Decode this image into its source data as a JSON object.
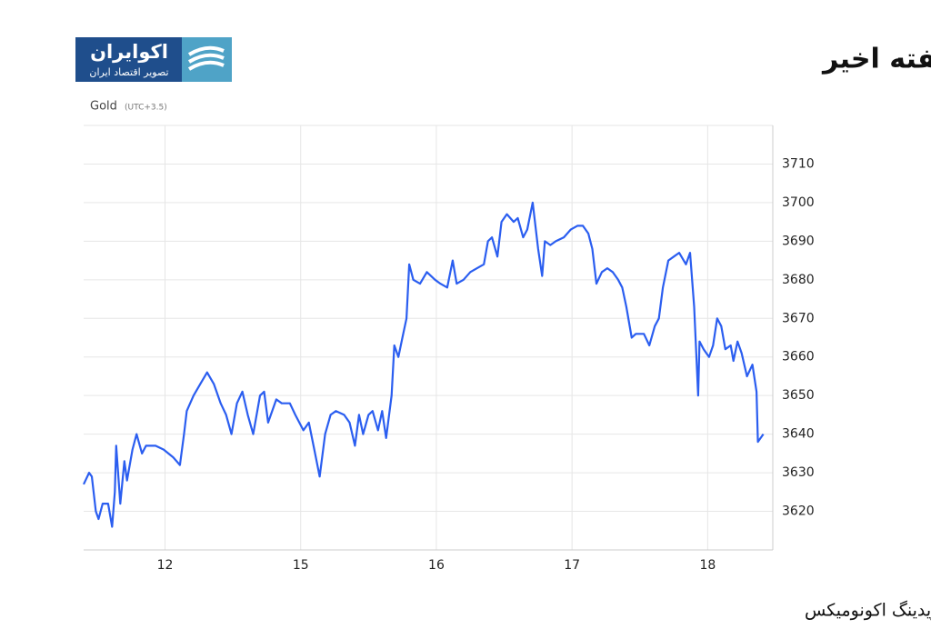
{
  "logo": {
    "name": "اکوایران",
    "tagline": "تصویر اقتصاد ایران"
  },
  "chart_data": {
    "type": "line",
    "title": "روند طلای جهانی در یک هفته اخیر",
    "y_label": "Gold",
    "y_label_note": "(UTC+3.5)",
    "source": "منبع: تریدینگ اکونومیکس",
    "color": "#2b5ef0",
    "grid": true,
    "xlim": [
      -0.6,
      4.48
    ],
    "ylim": [
      3610,
      3720
    ],
    "xticks": [
      {
        "value": 0,
        "label": "12"
      },
      {
        "value": 1,
        "label": "15"
      },
      {
        "value": 2,
        "label": "16"
      },
      {
        "value": 3,
        "label": "17"
      },
      {
        "value": 4,
        "label": "18"
      }
    ],
    "yticks": [
      3620,
      3630,
      3640,
      3650,
      3660,
      3670,
      3680,
      3690,
      3700,
      3710
    ],
    "x": [
      -0.6,
      -0.56,
      -0.54,
      -0.51,
      -0.49,
      -0.46,
      -0.42,
      -0.39,
      -0.37,
      -0.36,
      -0.33,
      -0.3,
      -0.28,
      -0.24,
      -0.21,
      -0.17,
      -0.14,
      -0.07,
      -0.01,
      0.06,
      0.11,
      0.14,
      0.16,
      0.21,
      0.26,
      0.31,
      0.36,
      0.41,
      0.45,
      0.49,
      0.53,
      0.57,
      0.61,
      0.65,
      0.7,
      0.73,
      0.76,
      0.82,
      0.86,
      0.92,
      0.96,
      1.02,
      1.06,
      1.1,
      1.14,
      1.18,
      1.22,
      1.26,
      1.32,
      1.36,
      1.4,
      1.43,
      1.46,
      1.5,
      1.53,
      1.57,
      1.6,
      1.63,
      1.67,
      1.69,
      1.72,
      1.75,
      1.78,
      1.8,
      1.83,
      1.88,
      1.93,
      1.99,
      2.03,
      2.08,
      2.12,
      2.15,
      2.2,
      2.25,
      2.3,
      2.35,
      2.38,
      2.41,
      2.45,
      2.48,
      2.52,
      2.57,
      2.6,
      2.64,
      2.67,
      2.71,
      2.75,
      2.78,
      2.8,
      2.84,
      2.88,
      2.94,
      2.99,
      3.04,
      3.08,
      3.12,
      3.15,
      3.18,
      3.22,
      3.26,
      3.3,
      3.34,
      3.37,
      3.4,
      3.44,
      3.47,
      3.53,
      3.57,
      3.61,
      3.64,
      3.67,
      3.71,
      3.75,
      3.79,
      3.84,
      3.87,
      3.9,
      3.93,
      3.94,
      3.97,
      4.01,
      4.04,
      4.07,
      4.1,
      4.13,
      4.17,
      4.19,
      4.22,
      4.25,
      4.29,
      4.33,
      4.36,
      4.37,
      4.41
    ],
    "values": [
      3627,
      3630,
      3629,
      3620,
      3618,
      3622,
      3622,
      3616,
      3625,
      3637,
      3622,
      3633,
      3628,
      3636,
      3640,
      3635,
      3637,
      3637,
      3636,
      3634,
      3632,
      3640,
      3646,
      3650,
      3653,
      3656,
      3653,
      3648,
      3645,
      3640,
      3648,
      3651,
      3645,
      3640,
      3650,
      3651,
      3643,
      3649,
      3648,
      3648,
      3645,
      3641,
      3643,
      3636,
      3629,
      3640,
      3645,
      3646,
      3645,
      3643,
      3637,
      3645,
      3640,
      3645,
      3646,
      3641,
      3646,
      3639,
      3650,
      3663,
      3660,
      3665,
      3670,
      3684,
      3680,
      3679,
      3682,
      3680,
      3679,
      3678,
      3685,
      3679,
      3680,
      3682,
      3683,
      3684,
      3690,
      3691,
      3686,
      3695,
      3697,
      3695,
      3696,
      3691,
      3693,
      3700,
      3688,
      3681,
      3690,
      3689,
      3690,
      3691,
      3693,
      3694,
      3694,
      3692,
      3688,
      3679,
      3682,
      3683,
      3682,
      3680,
      3678,
      3673,
      3665,
      3666,
      3666,
      3663,
      3668,
      3670,
      3678,
      3685,
      3686,
      3687,
      3684,
      3687,
      3673,
      3650,
      3664,
      3662,
      3660,
      3663,
      3670,
      3668,
      3662,
      3663,
      3659,
      3664,
      3661,
      3655,
      3658,
      3651,
      3638,
      3640
    ]
  }
}
